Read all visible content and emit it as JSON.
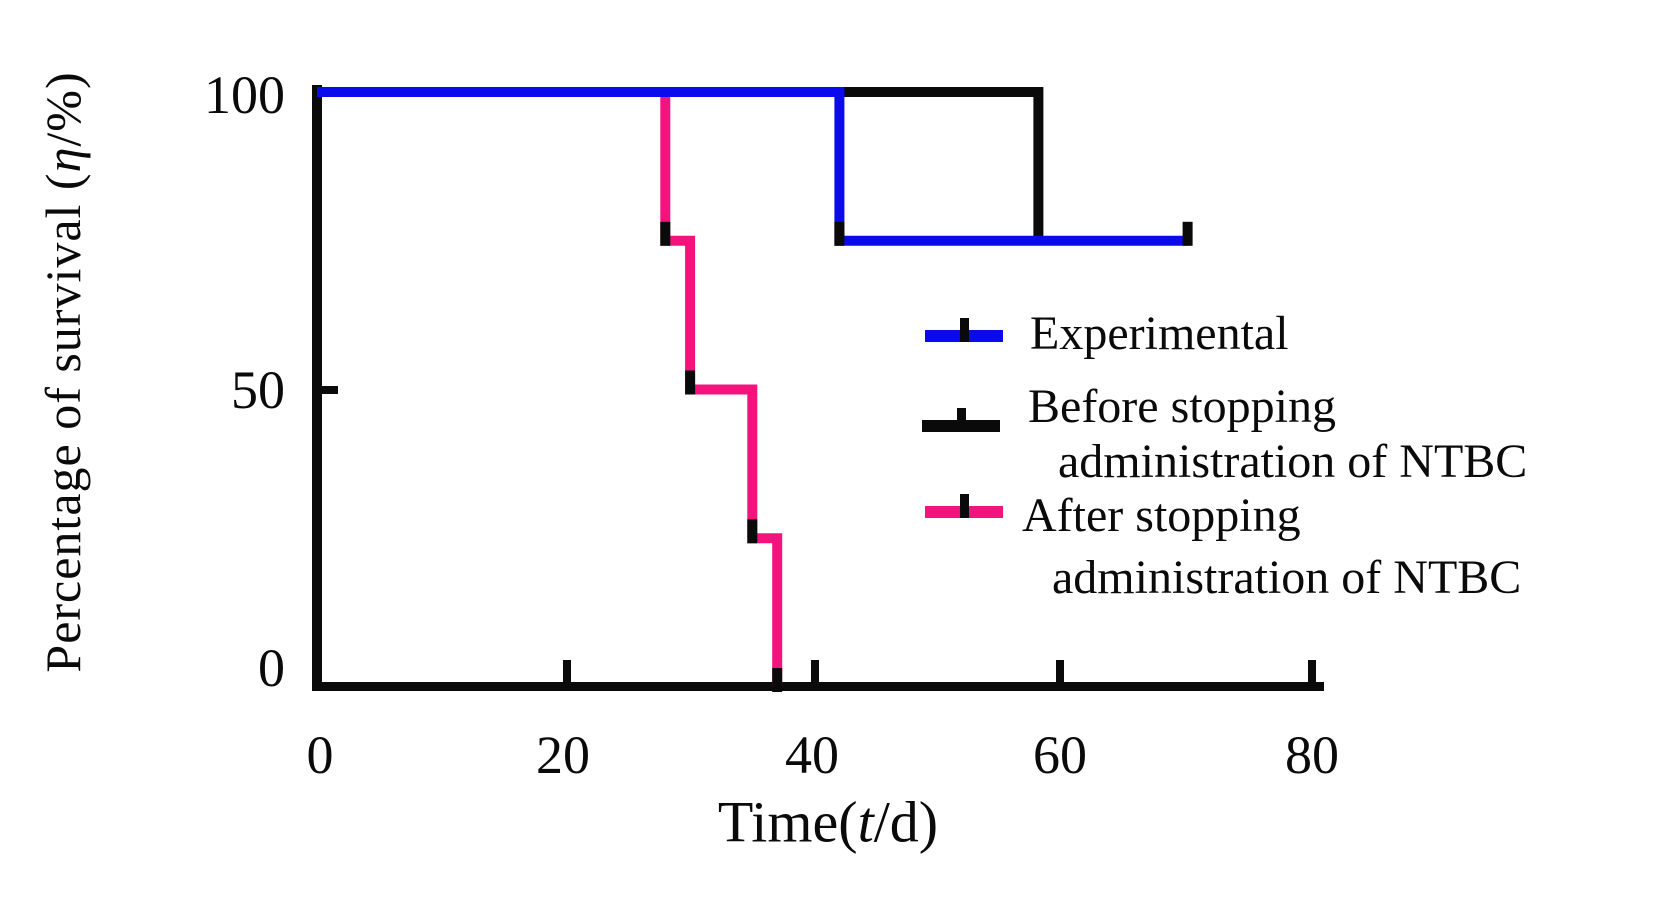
{
  "figure": {
    "background": "#ffffff",
    "ink_color": "#0a0a0a"
  },
  "axes": {
    "xlabel": {
      "prefix": "Time(",
      "symbol": "t",
      "suffix": "/d)"
    },
    "ylabel": {
      "prefix": "Percentage of survival (",
      "symbol": "η",
      "suffix": "/%)"
    },
    "x_tick_labels": [
      "0",
      "20",
      "40",
      "60",
      "80"
    ],
    "y_tick_labels": [
      "100",
      "50",
      "0"
    ]
  },
  "legend": {
    "items": [
      {
        "marker": "line-with-censor-tick",
        "color": "#0a0aec",
        "label_lines": [
          "Experimental",
          ""
        ]
      },
      {
        "marker": "line-with-censor-tick",
        "color": "#0a0a0a",
        "label_lines": [
          "Before stopping",
          "administration of NTBC"
        ]
      },
      {
        "marker": "line-with-censor-tick",
        "color": "#f2147c",
        "label_lines": [
          "After stopping",
          "administration of NTBC"
        ]
      }
    ]
  },
  "chart_data": {
    "type": "line",
    "subtype": "kaplan-meier-step",
    "title": "",
    "xlabel": "Time(t/d)",
    "ylabel": "Percentage of survival (η/%)",
    "xlim": [
      0,
      80
    ],
    "ylim": [
      0,
      100
    ],
    "x_ticks": [
      0,
      20,
      40,
      60,
      80
    ],
    "y_ticks": [
      0,
      50,
      100
    ],
    "grid": false,
    "legend_position": "center-right",
    "series": [
      {
        "name": "Experimental",
        "color": "#0a0aec",
        "points": [
          [
            0,
            100
          ],
          [
            42,
            100
          ],
          [
            42,
            75
          ],
          [
            70,
            75
          ]
        ],
        "censor_marks": [
          [
            42,
            75
          ],
          [
            70,
            75
          ]
        ]
      },
      {
        "name": "Before stopping administration of NTBC",
        "color": "#0a0a0a",
        "points": [
          [
            0,
            100
          ],
          [
            58,
            100
          ],
          [
            58,
            75
          ]
        ],
        "censor_marks": []
      },
      {
        "name": "After stopping administration of NTBC",
        "color": "#f2147c",
        "points": [
          [
            0,
            100
          ],
          [
            28,
            100
          ],
          [
            28,
            75
          ],
          [
            30,
            75
          ],
          [
            30,
            50
          ],
          [
            35,
            50
          ],
          [
            35,
            25
          ],
          [
            37,
            25
          ],
          [
            37,
            0
          ]
        ],
        "censor_marks": [
          [
            28,
            75
          ],
          [
            30,
            50
          ],
          [
            35,
            25
          ],
          [
            37,
            0
          ]
        ]
      }
    ]
  }
}
